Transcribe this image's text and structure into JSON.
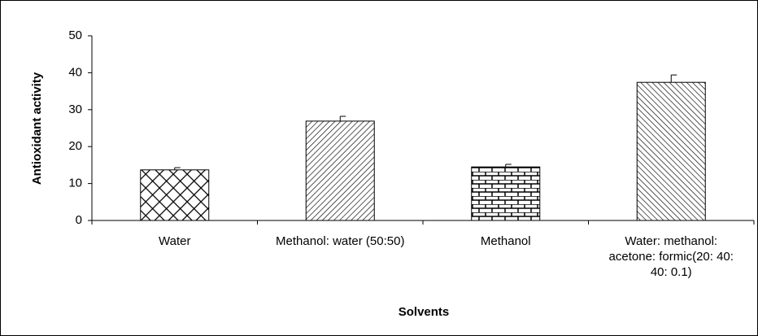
{
  "chart_data": {
    "type": "bar",
    "xlabel": "Solvents",
    "ylabel": "Antioxidant activity",
    "categories": [
      "Water",
      "Methanol: water (50:50)",
      "Methanol",
      "Water: methanol: acetone: formic(20: 40: 40: 0.1)"
    ],
    "values": [
      13.7,
      26.9,
      14.5,
      37.4
    ],
    "errors": [
      0.6,
      1.3,
      0.7,
      2.0
    ],
    "color": "#000000",
    "ylim": [
      0,
      50
    ],
    "yticks": [
      0,
      10,
      20,
      30,
      40,
      50
    ],
    "grid": false
  }
}
